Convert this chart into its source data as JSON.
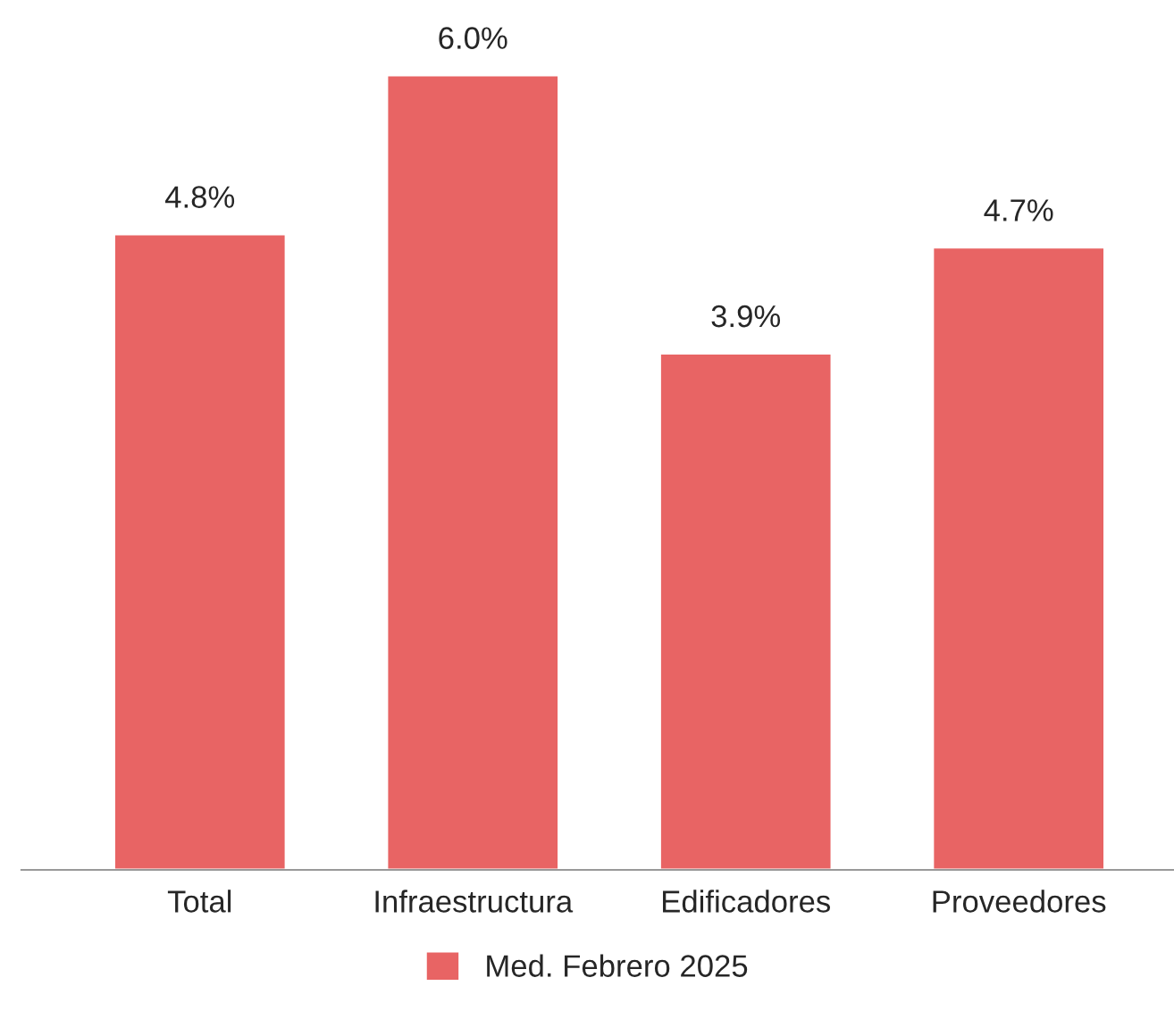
{
  "chart_data": {
    "type": "bar",
    "categories": [
      "Total",
      "Infraestructura",
      "Edificadores",
      "Proveedores"
    ],
    "series": [
      {
        "name": "Med. Febrero 2025",
        "color": "#e86464",
        "values": [
          4.8,
          6.0,
          3.9,
          4.7
        ],
        "value_labels": [
          "4.8%",
          "6.0%",
          "3.9%",
          "4.7%"
        ]
      }
    ],
    "legend": "bottom",
    "grid": false
  }
}
